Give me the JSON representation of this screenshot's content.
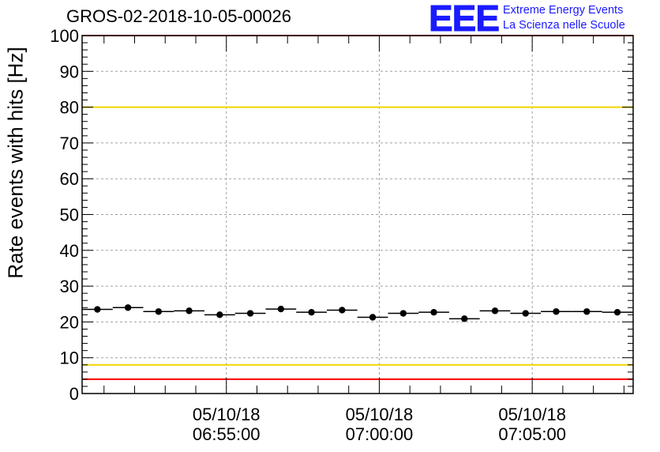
{
  "header": {
    "title": "GROS-02-2018-10-05-00026",
    "logo_mark": "EEE",
    "logo_line1": "Extreme Energy Events",
    "logo_line2": "La Scienza nelle Scuole"
  },
  "colors": {
    "red_threshold": "#ff0000",
    "yellow_threshold": "#f2d600",
    "points": "#000000",
    "grid": "#a0a0a0",
    "logo": "#1a1aff"
  },
  "chart_data": {
    "type": "scatter",
    "title": "GROS-02-2018-10-05-00026",
    "ylabel": "Rate events with hits [Hz]",
    "xlabel": "",
    "ylim": [
      0,
      100
    ],
    "yticks": [
      0,
      10,
      20,
      30,
      40,
      50,
      60,
      70,
      80,
      90,
      100
    ],
    "xlim": [
      "05/10/18 06:50:17",
      "05/10/18 07:08:18"
    ],
    "xticks": [
      {
        "date": "05/10/18",
        "time": "06:55:00"
      },
      {
        "date": "05/10/18",
        "time": "07:00:00"
      },
      {
        "date": "05/10/18",
        "time": "07:05:00"
      }
    ],
    "grid": true,
    "bin_width_seconds": 60,
    "x": [
      "06:50:47",
      "06:51:47",
      "06:52:47",
      "06:53:47",
      "06:54:47",
      "06:55:47",
      "06:56:47",
      "06:57:47",
      "06:58:47",
      "06:59:47",
      "07:00:47",
      "07:01:47",
      "07:02:47",
      "07:03:47",
      "07:04:47",
      "07:05:47",
      "07:06:47",
      "07:07:47"
    ],
    "series": [
      {
        "values": [
          23.5,
          24.0,
          22.9,
          23.1,
          22.0,
          22.4,
          23.6,
          22.7,
          23.3,
          21.3,
          22.4,
          22.7,
          20.9,
          23.1,
          22.4,
          22.9,
          22.9,
          22.7
        ]
      }
    ],
    "thresholds": [
      {
        "value": 100,
        "color": "red"
      },
      {
        "value": 80,
        "color": "yellow"
      },
      {
        "value": 8,
        "color": "yellow"
      },
      {
        "value": 4,
        "color": "red"
      }
    ]
  }
}
